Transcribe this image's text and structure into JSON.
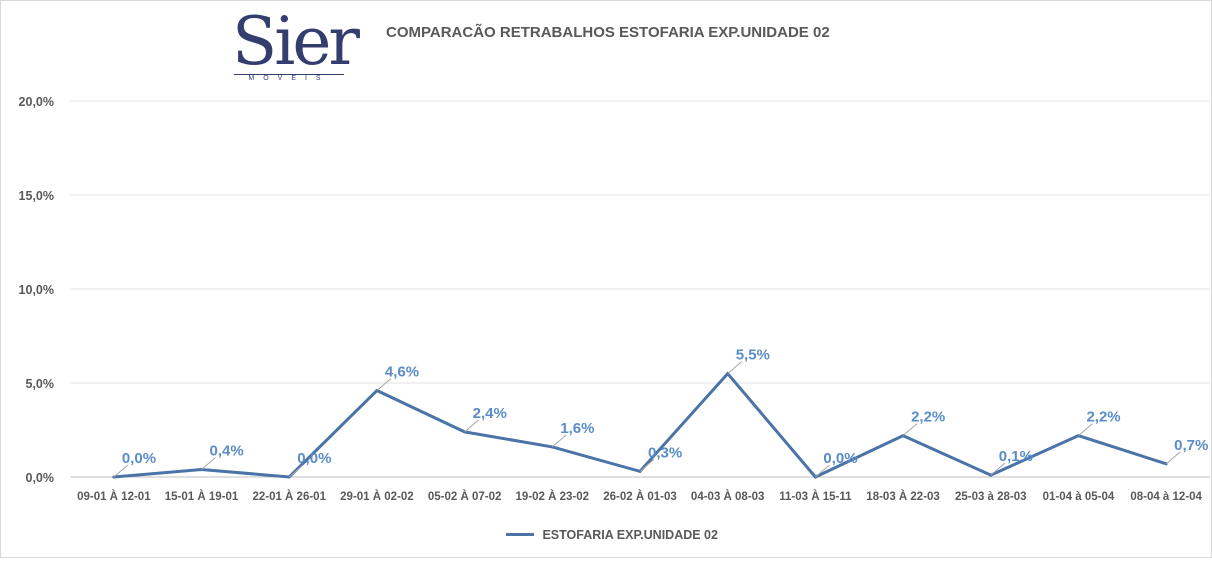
{
  "logo": {
    "word": "Sier",
    "sub": "MOVEIS"
  },
  "chart_data": {
    "type": "line",
    "title": "COMPARACÃO RETRABALHOS  ESTOFARIA EXP.UNIDADE 02",
    "categories": [
      "09-01 À 12-01",
      "15-01 À 19-01",
      "22-01 À 26-01",
      "29-01 À 02-02",
      "05-02 À 07-02",
      "19-02 À 23-02",
      "26-02 À 01-03",
      "04-03 À 08-03",
      "11-03 À 15-11",
      "18-03 À 22-03",
      "25-03 à 28-03",
      "01-04 à 05-04",
      "08-04 à 12-04"
    ],
    "series": [
      {
        "name": "ESTOFARIA EXP.UNIDADE 02",
        "values": [
          0.0,
          0.4,
          0.0,
          4.6,
          2.4,
          1.6,
          0.3,
          5.5,
          0.0,
          2.2,
          0.1,
          2.2,
          0.7
        ],
        "labels": [
          "0,0%",
          "0,4%",
          "0,0%",
          "4,6%",
          "2,4%",
          "1,6%",
          "0,3%",
          "5,5%",
          "0,0%",
          "2,2%",
          "0,1%",
          "2,2%",
          "0,7%"
        ]
      }
    ],
    "yticks": [
      "0,0%",
      "5,0%",
      "10,0%",
      "15,0%",
      "20,0%"
    ],
    "ylim": [
      0,
      20
    ],
    "grid": true,
    "legend_position": "bottom",
    "color": "#4a73a8",
    "label_color": "#5b8cc8"
  }
}
